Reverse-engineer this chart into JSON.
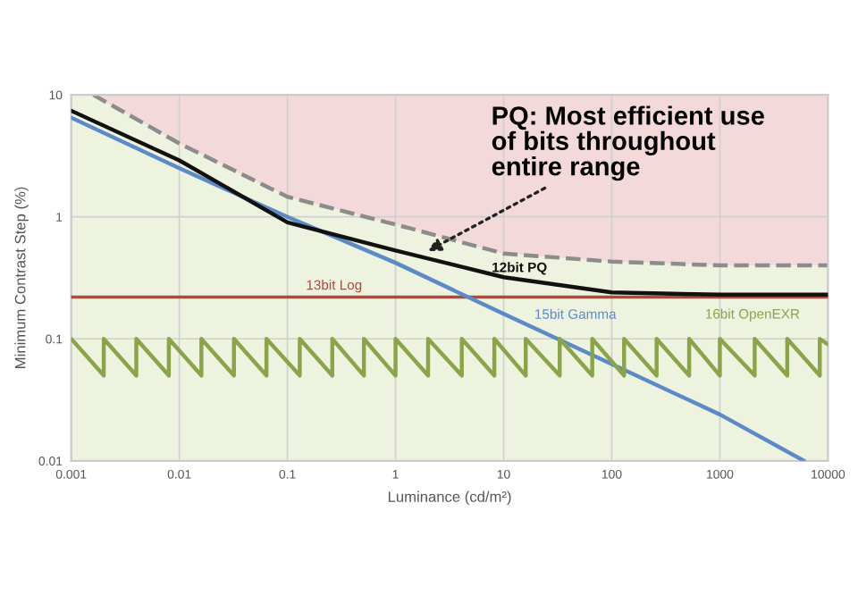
{
  "chart_data": {
    "type": "line",
    "xlabel": "Luminance (cd/m²)",
    "ylabel": "Minimum Contrast Step (%)",
    "log": "xy",
    "grid": true,
    "marker": "none",
    "xlim": [
      0.001,
      10000
    ],
    "ylim": [
      0.01,
      10
    ],
    "xticks": [
      0.001,
      0.01,
      0.1,
      1,
      10,
      100,
      1000,
      10000
    ],
    "yticks": [
      0.01,
      0.1,
      1,
      10
    ],
    "series": [
      {
        "color": "#8c8c8c",
        "line_style": "dashed",
        "x": [
          0.0016,
          0.01,
          0.1,
          1.4,
          10,
          100,
          1000,
          10000
        ],
        "values": [
          10,
          4.0,
          1.46,
          0.8,
          0.5,
          0.43,
          0.4,
          0.4
        ],
        "lower": [
          10,
          4.0,
          1.46,
          0.8,
          0.5,
          0.43,
          0.4,
          0.4
        ],
        "upper": [
          10,
          10,
          10,
          10,
          10,
          10,
          10,
          10
        ]
      },
      {
        "name": "13bit Log",
        "color": "#b5473a",
        "line_style": "solid",
        "x": [
          0.001,
          10000
        ],
        "values": [
          0.22,
          0.22
        ]
      },
      {
        "name": "15bit Gamma",
        "color": "#5b8ac6",
        "line_style": "solid",
        "x": [
          0.001,
          0.01,
          0.1,
          1,
          10,
          100,
          1000,
          6000
        ],
        "values": [
          6.5,
          2.5,
          1.0,
          0.42,
          0.16,
          0.062,
          0.024,
          0.01
        ]
      },
      {
        "name": "12bit PQ",
        "color": "#111111",
        "line_style": "solid",
        "x": [
          0.001,
          0.01,
          0.1,
          1,
          10,
          100,
          1000,
          10000
        ],
        "values": [
          7.4,
          2.9,
          0.9,
          0.53,
          0.32,
          0.24,
          0.23,
          0.23
        ]
      },
      {
        "name": "16bit OpenEXR",
        "color": "#8aa44a",
        "line_style": "solid",
        "x": [
          0.001,
          0.002,
          0.002,
          0.004,
          0.004,
          0.008,
          0.008,
          0.016,
          0.016,
          0.032,
          0.032,
          0.064,
          0.064,
          0.13,
          0.13,
          0.26,
          0.26,
          0.51,
          0.51,
          1.0,
          1.0,
          2.0,
          2.0,
          4.1,
          4.1,
          8.2,
          8.2,
          16,
          16,
          33,
          33,
          66,
          66,
          130,
          130,
          260,
          260,
          520,
          520,
          1000,
          1000,
          2100,
          2100,
          4200,
          4200,
          8400,
          8400,
          10000
        ],
        "values": [
          0.1,
          0.05,
          0.1,
          0.05,
          0.1,
          0.05,
          0.1,
          0.05,
          0.1,
          0.05,
          0.1,
          0.05,
          0.1,
          0.05,
          0.1,
          0.05,
          0.1,
          0.05,
          0.1,
          0.05,
          0.1,
          0.05,
          0.1,
          0.05,
          0.1,
          0.05,
          0.1,
          0.05,
          0.1,
          0.05,
          0.1,
          0.05,
          0.1,
          0.05,
          0.1,
          0.05,
          0.1,
          0.05,
          0.1,
          0.05,
          0.1,
          0.05,
          0.1,
          0.05,
          0.1,
          0.05,
          0.1,
          0.09
        ]
      }
    ],
    "annotations": [
      {
        "text": "PQ: Most efficient use\nof bits throughout\nentire range",
        "x": 1.8,
        "y": 0.5
      }
    ]
  }
}
